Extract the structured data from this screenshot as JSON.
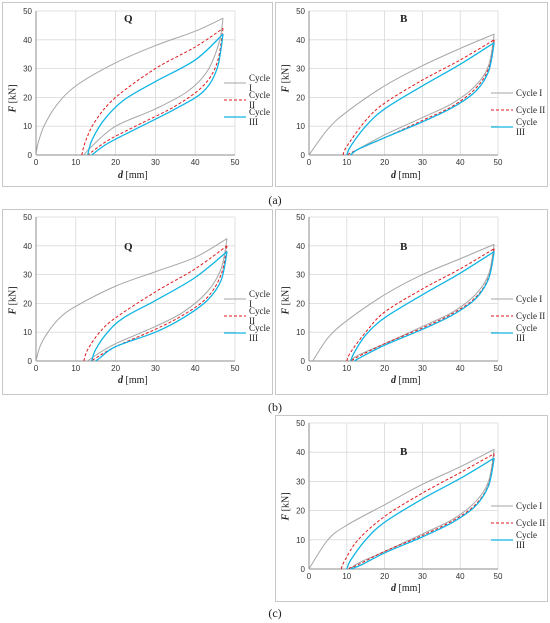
{
  "axes_text": {
    "y_var": "F",
    "y_unit": " [kN]",
    "x_var": "d",
    "x_unit": " [mm]"
  },
  "captions": [
    "(a)",
    "(b)",
    "(c)"
  ],
  "colors": {
    "cycle_1": "#a6a6a6",
    "cycle_2": "#e0191f",
    "cycle_3": "#11b5e4",
    "grid": "#d9d9d9"
  },
  "chart_data": [
    {
      "type": "line",
      "title": "Q",
      "caption": "(a)",
      "xlabel": "d [mm]",
      "ylabel": "F [kN]",
      "xlim": [
        0,
        50
      ],
      "ylim": [
        0,
        50
      ],
      "xticks": [
        0,
        10,
        20,
        30,
        40,
        50
      ],
      "yticks": [
        0,
        10,
        20,
        30,
        40,
        50
      ],
      "grid": true,
      "legend_position": "right",
      "series": [
        {
          "name": "Cycle I",
          "load": [
            [
              0,
              0
            ],
            [
              0.5,
              4
            ],
            [
              2,
              10
            ],
            [
              5,
              17
            ],
            [
              10,
              24
            ],
            [
              20,
              32
            ],
            [
              30,
              38
            ],
            [
              40,
              43
            ],
            [
              47,
              47.5
            ]
          ],
          "unload": [
            [
              47,
              47.5
            ],
            [
              46,
              39
            ],
            [
              43,
              29
            ],
            [
              38,
              22
            ],
            [
              30,
              16
            ],
            [
              20,
              10
            ],
            [
              14,
              3
            ],
            [
              12,
              0
            ]
          ]
        },
        {
          "name": "Cycle II",
          "load": [
            [
              11.5,
              0
            ],
            [
              12.5,
              5
            ],
            [
              15,
              12
            ],
            [
              20,
              20
            ],
            [
              30,
              30
            ],
            [
              40,
              37.5
            ],
            [
              47,
              44
            ]
          ],
          "unload": [
            [
              47,
              44
            ],
            [
              45.5,
              32
            ],
            [
              42,
              24
            ],
            [
              35,
              17
            ],
            [
              25,
              10
            ],
            [
              18,
              5
            ],
            [
              13,
              0
            ]
          ]
        },
        {
          "name": "Cycle III",
          "load": [
            [
              13,
              0
            ],
            [
              14,
              5
            ],
            [
              17,
              12
            ],
            [
              22,
              19
            ],
            [
              30,
              25.5
            ],
            [
              40,
              33
            ],
            [
              47,
              42
            ]
          ],
          "unload": [
            [
              47,
              42
            ],
            [
              45.5,
              30
            ],
            [
              42,
              22
            ],
            [
              35,
              16
            ],
            [
              25,
              9
            ],
            [
              18,
              4
            ],
            [
              14,
              0
            ]
          ]
        }
      ]
    },
    {
      "type": "line",
      "title": "B",
      "caption": "(a)",
      "xlabel": "d [mm]",
      "ylabel": "F [kN]",
      "xlim": [
        0,
        50
      ],
      "ylim": [
        0,
        50
      ],
      "xticks": [
        0,
        10,
        20,
        30,
        40,
        50
      ],
      "yticks": [
        0,
        10,
        20,
        30,
        40,
        50
      ],
      "grid": true,
      "legend_position": "right",
      "series": [
        {
          "name": "Cycle I",
          "load": [
            [
              0,
              0
            ],
            [
              5,
              9
            ],
            [
              10,
              15
            ],
            [
              20,
              24
            ],
            [
              30,
              31
            ],
            [
              40,
              37
            ],
            [
              49,
              42
            ]
          ],
          "unload": [
            [
              49,
              42
            ],
            [
              47.5,
              31
            ],
            [
              44,
              24
            ],
            [
              38,
              18
            ],
            [
              30,
              13
            ],
            [
              20,
              7
            ],
            [
              13,
              2
            ],
            [
              11,
              0
            ]
          ]
        },
        {
          "name": "Cycle II",
          "load": [
            [
              9,
              0
            ],
            [
              10,
              3
            ],
            [
              15,
              12
            ],
            [
              20,
              18
            ],
            [
              30,
              26
            ],
            [
              40,
              33
            ],
            [
              49,
              40
            ]
          ],
          "unload": [
            [
              49,
              40
            ],
            [
              47.5,
              30
            ],
            [
              44,
              23
            ],
            [
              38,
              17
            ],
            [
              30,
              12
            ],
            [
              20,
              6
            ],
            [
              13,
              2
            ],
            [
              10,
              0
            ]
          ]
        },
        {
          "name": "Cycle III",
          "load": [
            [
              10,
              0
            ],
            [
              11,
              3
            ],
            [
              15,
              10
            ],
            [
              20,
              16
            ],
            [
              30,
              24
            ],
            [
              40,
              31.5
            ],
            [
              49,
              39
            ]
          ],
          "unload": [
            [
              49,
              39
            ],
            [
              47.5,
              29
            ],
            [
              44,
              22
            ],
            [
              38,
              16.5
            ],
            [
              30,
              11.5
            ],
            [
              20,
              6
            ],
            [
              13,
              2
            ],
            [
              11,
              0
            ]
          ]
        }
      ]
    },
    {
      "type": "line",
      "title": "Q",
      "caption": "(b)",
      "xlabel": "d [mm]",
      "ylabel": "F [kN]",
      "xlim": [
        0,
        50
      ],
      "ylim": [
        0,
        50
      ],
      "xticks": [
        0,
        10,
        20,
        30,
        40,
        50
      ],
      "yticks": [
        0,
        10,
        20,
        30,
        40,
        50
      ],
      "grid": true,
      "legend_position": "right",
      "series": [
        {
          "name": "Cycle I",
          "load": [
            [
              0,
              0
            ],
            [
              1,
              5
            ],
            [
              3,
              10
            ],
            [
              6,
              15
            ],
            [
              10,
              19
            ],
            [
              20,
              26
            ],
            [
              30,
              31
            ],
            [
              40,
              36
            ],
            [
              48,
              42.5
            ]
          ],
          "unload": [
            [
              48,
              42.5
            ],
            [
              46.5,
              32
            ],
            [
              43,
              24
            ],
            [
              37,
              17
            ],
            [
              30,
              12
            ],
            [
              20,
              6
            ],
            [
              15,
              2
            ],
            [
              13,
              0
            ]
          ]
        },
        {
          "name": "Cycle II",
          "load": [
            [
              12,
              0
            ],
            [
              13,
              4
            ],
            [
              16,
              10
            ],
            [
              20,
              15
            ],
            [
              30,
              24
            ],
            [
              40,
              32
            ],
            [
              48,
              40
            ]
          ],
          "unload": [
            [
              48,
              40
            ],
            [
              46.5,
              30
            ],
            [
              43,
              22
            ],
            [
              37,
              16
            ],
            [
              30,
              11
            ],
            [
              20,
              5
            ],
            [
              15,
              1
            ],
            [
              14,
              0
            ]
          ]
        },
        {
          "name": "Cycle III",
          "load": [
            [
              14,
              0
            ],
            [
              15,
              4
            ],
            [
              18,
              10
            ],
            [
              22,
              15
            ],
            [
              30,
              21
            ],
            [
              40,
              29
            ],
            [
              48,
              38
            ]
          ],
          "unload": [
            [
              48,
              38
            ],
            [
              46.5,
              28
            ],
            [
              43,
              21
            ],
            [
              37,
              15
            ],
            [
              30,
              10
            ],
            [
              20,
              5
            ],
            [
              16,
              1
            ],
            [
              15,
              0
            ]
          ]
        }
      ]
    },
    {
      "type": "line",
      "title": "B",
      "caption": "(b)",
      "xlabel": "d [mm]",
      "ylabel": "F [kN]",
      "xlim": [
        0,
        50
      ],
      "ylim": [
        0,
        50
      ],
      "xticks": [
        0,
        10,
        20,
        30,
        40,
        50
      ],
      "yticks": [
        0,
        10,
        20,
        30,
        40,
        50
      ],
      "grid": true,
      "legend_position": "right",
      "series": [
        {
          "name": "Cycle I",
          "load": [
            [
              1,
              0
            ],
            [
              5,
              8
            ],
            [
              10,
              14
            ],
            [
              20,
              23
            ],
            [
              30,
              30
            ],
            [
              40,
              35.5
            ],
            [
              49,
              40.5
            ]
          ],
          "unload": [
            [
              49,
              40.5
            ],
            [
              47.5,
              30
            ],
            [
              44,
              23
            ],
            [
              38,
              17
            ],
            [
              30,
              12
            ],
            [
              20,
              6
            ],
            [
              13,
              2
            ],
            [
              11,
              0
            ]
          ]
        },
        {
          "name": "Cycle II",
          "load": [
            [
              10,
              0
            ],
            [
              11,
              3
            ],
            [
              15,
              10
            ],
            [
              20,
              17
            ],
            [
              30,
              25
            ],
            [
              40,
              32
            ],
            [
              49,
              39
            ]
          ],
          "unload": [
            [
              49,
              39
            ],
            [
              47.5,
              29
            ],
            [
              44,
              22
            ],
            [
              38,
              16.5
            ],
            [
              30,
              11.5
            ],
            [
              20,
              6
            ],
            [
              13,
              1.5
            ],
            [
              11,
              0
            ]
          ]
        },
        {
          "name": "Cycle III",
          "load": [
            [
              11,
              0
            ],
            [
              12,
              3
            ],
            [
              15,
              9
            ],
            [
              20,
              15
            ],
            [
              30,
              23
            ],
            [
              40,
              30.5
            ],
            [
              49,
              38
            ]
          ],
          "unload": [
            [
              49,
              38
            ],
            [
              47.5,
              28.5
            ],
            [
              44,
              21.5
            ],
            [
              38,
              16
            ],
            [
              30,
              11
            ],
            [
              20,
              5.5
            ],
            [
              14,
              1.5
            ],
            [
              12,
              0
            ]
          ]
        }
      ]
    },
    {
      "type": "line",
      "title": "B",
      "caption": "(c)",
      "xlabel": "d [mm]",
      "ylabel": "F [kN]",
      "xlim": [
        0,
        50
      ],
      "ylim": [
        0,
        50
      ],
      "xticks": [
        0,
        10,
        20,
        30,
        40,
        50
      ],
      "yticks": [
        0,
        10,
        20,
        30,
        40,
        50
      ],
      "grid": true,
      "legend_position": "right",
      "series": [
        {
          "name": "Cycle I",
          "load": [
            [
              0,
              0
            ],
            [
              5,
              10
            ],
            [
              10,
              15
            ],
            [
              20,
              22
            ],
            [
              30,
              29
            ],
            [
              40,
              35
            ],
            [
              49,
              41
            ]
          ],
          "unload": [
            [
              49,
              41
            ],
            [
              47.5,
              30
            ],
            [
              44,
              23
            ],
            [
              38,
              17
            ],
            [
              30,
              12
            ],
            [
              20,
              6
            ],
            [
              13,
              2
            ],
            [
              11,
              0
            ]
          ]
        },
        {
          "name": "Cycle II",
          "load": [
            [
              8.5,
              0
            ],
            [
              9.5,
              3
            ],
            [
              13,
              10
            ],
            [
              20,
              18
            ],
            [
              30,
              26
            ],
            [
              40,
              33
            ],
            [
              49,
              39.5
            ]
          ],
          "unload": [
            [
              49,
              39.5
            ],
            [
              47.5,
              29
            ],
            [
              44,
              22
            ],
            [
              38,
              16.5
            ],
            [
              30,
              11.5
            ],
            [
              20,
              6
            ],
            [
              13,
              1.5
            ],
            [
              10,
              0
            ]
          ]
        },
        {
          "name": "Cycle III",
          "load": [
            [
              10,
              0
            ],
            [
              11,
              3
            ],
            [
              15,
              10
            ],
            [
              20,
              16
            ],
            [
              30,
              24
            ],
            [
              40,
              31
            ],
            [
              49,
              38
            ]
          ],
          "unload": [
            [
              49,
              38
            ],
            [
              47.5,
              28.5
            ],
            [
              44,
              21.5
            ],
            [
              38,
              16
            ],
            [
              30,
              11
            ],
            [
              20,
              5.5
            ],
            [
              14,
              1.5
            ],
            [
              11,
              0
            ]
          ]
        }
      ]
    }
  ]
}
